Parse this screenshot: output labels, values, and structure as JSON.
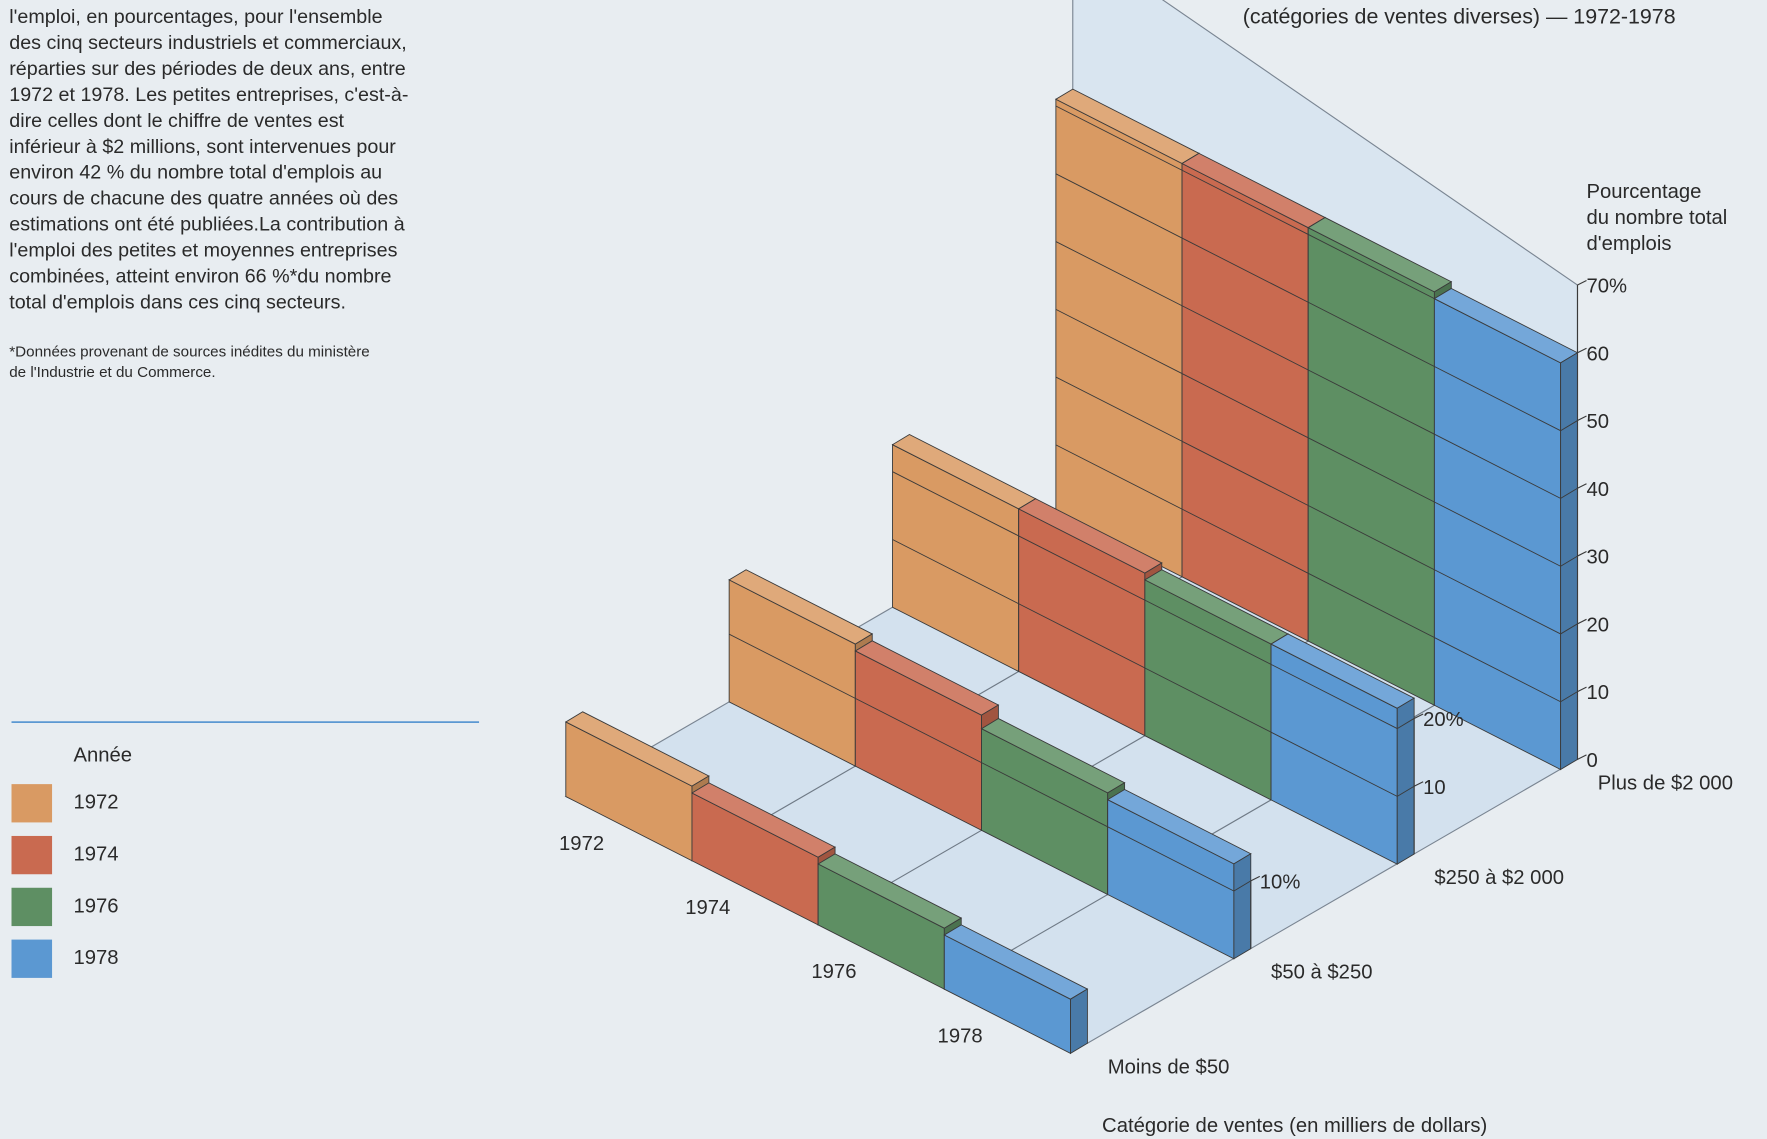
{
  "chart_data": {
    "type": "bar3d",
    "title": "(catégories de ventes diverses) — 1972-1978",
    "text_lines": [
      "l'emploi, en pourcentages, pour l'ensemble",
      "des cinq secteurs industriels et commerciaux,",
      "réparties sur des périodes de deux ans, entre",
      "1972 et 1978. Les petites entreprises, c'est-à-",
      "dire celles dont le chiffre de ventes est",
      "inférieur à $2 millions, sont intervenues pour",
      "environ 42 % du nombre total d'emplois au",
      "cours de chacune des quatre années où des",
      "estimations ont été publiées.La contribution à",
      "l'emploi des petites et moyennes entreprises",
      "combinées, atteint environ 66 %*du nombre",
      "total d'emplois dans ces cinq secteurs."
    ],
    "footnote_lines": [
      "*Données provenant de sources inédites du ministère",
      "de l'Industrie et du Commerce."
    ],
    "legend_title": "Année",
    "y_label_lines": [
      "Pourcentage",
      "du nombre total",
      "d'emplois"
    ],
    "x_label": "Catégorie de ventes (en milliers de dollars)",
    "categories": [
      "Moins de $50",
      "$50 à $250",
      "$250 à $2 000",
      "Plus de $2 000"
    ],
    "series": [
      {
        "name": "1972",
        "color": "#d99a63",
        "values": [
          11,
          18,
          24,
          61
        ]
      },
      {
        "name": "1974",
        "color": "#c96a50",
        "values": [
          10,
          17,
          24,
          61
        ]
      },
      {
        "name": "1976",
        "color": "#5e8f63",
        "values": [
          9,
          15,
          23,
          61
        ]
      },
      {
        "name": "1978",
        "color": "#5b98d2",
        "values": [
          8,
          14,
          23,
          60
        ]
      }
    ],
    "ylim": [
      0,
      70
    ],
    "yticks": [
      [],
      [
        {
          "value": 10,
          "label": "10%"
        }
      ],
      [
        10,
        {
          "value": 20,
          "label": "20%"
        }
      ],
      [
        0,
        10,
        20,
        30,
        40,
        50,
        60,
        {
          "value": 70,
          "label": "70%"
        }
      ]
    ]
  }
}
